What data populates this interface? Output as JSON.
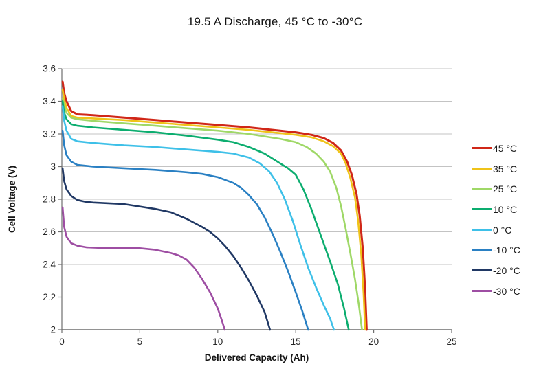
{
  "chart_data": {
    "type": "line",
    "title": "19.5 A Discharge, 45 °C to -30°C",
    "xlabel": "Delivered Capacity (Ah)",
    "ylabel": "Cell Voltage (V)",
    "xlim": [
      0,
      25
    ],
    "ylim": [
      2,
      3.6
    ],
    "xticks": [
      0,
      5,
      10,
      15,
      20,
      25
    ],
    "ytick_step": 0.2,
    "grid": "horizontal-only",
    "legend_position": "right",
    "colors": {
      "axis": "#6f6f6f",
      "gridline": "#c3c3c3",
      "tick_text": "#262626",
      "axis_title_text": "#141414",
      "background": "#ffffff"
    },
    "series": [
      {
        "name": "45 °C",
        "color": "#d02718",
        "points": [
          [
            0.05,
            3.52
          ],
          [
            0.15,
            3.45
          ],
          [
            0.3,
            3.4
          ],
          [
            0.6,
            3.34
          ],
          [
            1.0,
            3.32
          ],
          [
            2,
            3.315
          ],
          [
            4,
            3.3
          ],
          [
            6,
            3.285
          ],
          [
            8,
            3.27
          ],
          [
            10,
            3.255
          ],
          [
            12,
            3.24
          ],
          [
            14,
            3.22
          ],
          [
            15,
            3.21
          ],
          [
            16,
            3.195
          ],
          [
            16.8,
            3.175
          ],
          [
            17.4,
            3.145
          ],
          [
            17.9,
            3.1
          ],
          [
            18.3,
            3.03
          ],
          [
            18.6,
            2.95
          ],
          [
            18.9,
            2.83
          ],
          [
            19.1,
            2.7
          ],
          [
            19.3,
            2.5
          ],
          [
            19.45,
            2.25
          ],
          [
            19.55,
            2.0
          ]
        ]
      },
      {
        "name": "35 °C",
        "color": "#efc319",
        "points": [
          [
            0.05,
            3.47
          ],
          [
            0.15,
            3.41
          ],
          [
            0.3,
            3.36
          ],
          [
            0.6,
            3.31
          ],
          [
            1.0,
            3.3
          ],
          [
            2,
            3.295
          ],
          [
            4,
            3.285
          ],
          [
            6,
            3.27
          ],
          [
            8,
            3.255
          ],
          [
            10,
            3.24
          ],
          [
            12,
            3.225
          ],
          [
            14,
            3.205
          ],
          [
            15,
            3.195
          ],
          [
            16,
            3.18
          ],
          [
            16.8,
            3.155
          ],
          [
            17.4,
            3.125
          ],
          [
            17.9,
            3.08
          ],
          [
            18.2,
            3.02
          ],
          [
            18.5,
            2.93
          ],
          [
            18.8,
            2.81
          ],
          [
            19.0,
            2.67
          ],
          [
            19.2,
            2.46
          ],
          [
            19.35,
            2.22
          ],
          [
            19.45,
            2.0
          ]
        ]
      },
      {
        "name": "25 °C",
        "color": "#9fd867",
        "points": [
          [
            0.05,
            3.42
          ],
          [
            0.15,
            3.37
          ],
          [
            0.3,
            3.33
          ],
          [
            0.6,
            3.3
          ],
          [
            1.0,
            3.29
          ],
          [
            2,
            3.28
          ],
          [
            4,
            3.265
          ],
          [
            6,
            3.25
          ],
          [
            8,
            3.235
          ],
          [
            10,
            3.22
          ],
          [
            12,
            3.2
          ],
          [
            14,
            3.17
          ],
          [
            15,
            3.15
          ],
          [
            15.7,
            3.12
          ],
          [
            16.3,
            3.08
          ],
          [
            16.8,
            3.03
          ],
          [
            17.2,
            2.97
          ],
          [
            17.6,
            2.87
          ],
          [
            17.9,
            2.76
          ],
          [
            18.2,
            2.62
          ],
          [
            18.5,
            2.47
          ],
          [
            18.8,
            2.31
          ],
          [
            19.05,
            2.15
          ],
          [
            19.25,
            2.0
          ]
        ]
      },
      {
        "name": "10 °C",
        "color": "#0cad6f",
        "points": [
          [
            0.05,
            3.4
          ],
          [
            0.15,
            3.33
          ],
          [
            0.3,
            3.29
          ],
          [
            0.6,
            3.26
          ],
          [
            1.0,
            3.25
          ],
          [
            2,
            3.24
          ],
          [
            4,
            3.225
          ],
          [
            6,
            3.21
          ],
          [
            8,
            3.19
          ],
          [
            10,
            3.165
          ],
          [
            11,
            3.15
          ],
          [
            12,
            3.12
          ],
          [
            13,
            3.08
          ],
          [
            14,
            3.02
          ],
          [
            14.5,
            2.99
          ],
          [
            15,
            2.95
          ],
          [
            15.5,
            2.86
          ],
          [
            16,
            2.74
          ],
          [
            16.6,
            2.58
          ],
          [
            17.2,
            2.42
          ],
          [
            17.7,
            2.28
          ],
          [
            18.1,
            2.13
          ],
          [
            18.4,
            2.0
          ]
        ]
      },
      {
        "name": "0 °C",
        "color": "#3ec0e8",
        "points": [
          [
            0.05,
            3.37
          ],
          [
            0.15,
            3.28
          ],
          [
            0.3,
            3.22
          ],
          [
            0.6,
            3.17
          ],
          [
            1.0,
            3.155
          ],
          [
            2,
            3.145
          ],
          [
            4,
            3.13
          ],
          [
            6,
            3.12
          ],
          [
            8,
            3.105
          ],
          [
            10,
            3.09
          ],
          [
            11,
            3.08
          ],
          [
            12,
            3.055
          ],
          [
            12.7,
            3.02
          ],
          [
            13.3,
            2.97
          ],
          [
            13.8,
            2.9
          ],
          [
            14.3,
            2.8
          ],
          [
            14.8,
            2.67
          ],
          [
            15.3,
            2.52
          ],
          [
            15.8,
            2.38
          ],
          [
            16.3,
            2.26
          ],
          [
            16.8,
            2.15
          ],
          [
            17.2,
            2.07
          ],
          [
            17.45,
            2.0
          ]
        ]
      },
      {
        "name": "-10 °C",
        "color": "#2a80c3",
        "points": [
          [
            0.05,
            3.22
          ],
          [
            0.15,
            3.13
          ],
          [
            0.3,
            3.07
          ],
          [
            0.6,
            3.03
          ],
          [
            1.0,
            3.01
          ],
          [
            2,
            3.0
          ],
          [
            4,
            2.99
          ],
          [
            6,
            2.98
          ],
          [
            8,
            2.965
          ],
          [
            9,
            2.955
          ],
          [
            10,
            2.935
          ],
          [
            11,
            2.9
          ],
          [
            11.5,
            2.87
          ],
          [
            12,
            2.825
          ],
          [
            12.5,
            2.77
          ],
          [
            13,
            2.69
          ],
          [
            13.5,
            2.59
          ],
          [
            14,
            2.48
          ],
          [
            14.5,
            2.36
          ],
          [
            15,
            2.23
          ],
          [
            15.4,
            2.12
          ],
          [
            15.8,
            2.0
          ]
        ]
      },
      {
        "name": "-20 °C",
        "color": "#203864",
        "points": [
          [
            0.05,
            2.99
          ],
          [
            0.15,
            2.91
          ],
          [
            0.3,
            2.86
          ],
          [
            0.6,
            2.82
          ],
          [
            1.0,
            2.795
          ],
          [
            1.5,
            2.785
          ],
          [
            2,
            2.78
          ],
          [
            4,
            2.77
          ],
          [
            6,
            2.74
          ],
          [
            7,
            2.72
          ],
          [
            8,
            2.68
          ],
          [
            9,
            2.63
          ],
          [
            9.5,
            2.6
          ],
          [
            10,
            2.56
          ],
          [
            10.5,
            2.51
          ],
          [
            11,
            2.45
          ],
          [
            11.5,
            2.38
          ],
          [
            12,
            2.3
          ],
          [
            12.5,
            2.21
          ],
          [
            13,
            2.11
          ],
          [
            13.35,
            2.0
          ]
        ]
      },
      {
        "name": "-30 °C",
        "color": "#9e4ea3",
        "points": [
          [
            0.05,
            2.75
          ],
          [
            0.15,
            2.63
          ],
          [
            0.3,
            2.57
          ],
          [
            0.6,
            2.53
          ],
          [
            1.0,
            2.515
          ],
          [
            1.6,
            2.505
          ],
          [
            3,
            2.5
          ],
          [
            5,
            2.5
          ],
          [
            6,
            2.49
          ],
          [
            7,
            2.47
          ],
          [
            7.5,
            2.455
          ],
          [
            8,
            2.43
          ],
          [
            8.5,
            2.38
          ],
          [
            9,
            2.31
          ],
          [
            9.5,
            2.23
          ],
          [
            10,
            2.13
          ],
          [
            10.25,
            2.06
          ],
          [
            10.45,
            2.0
          ]
        ]
      }
    ]
  }
}
